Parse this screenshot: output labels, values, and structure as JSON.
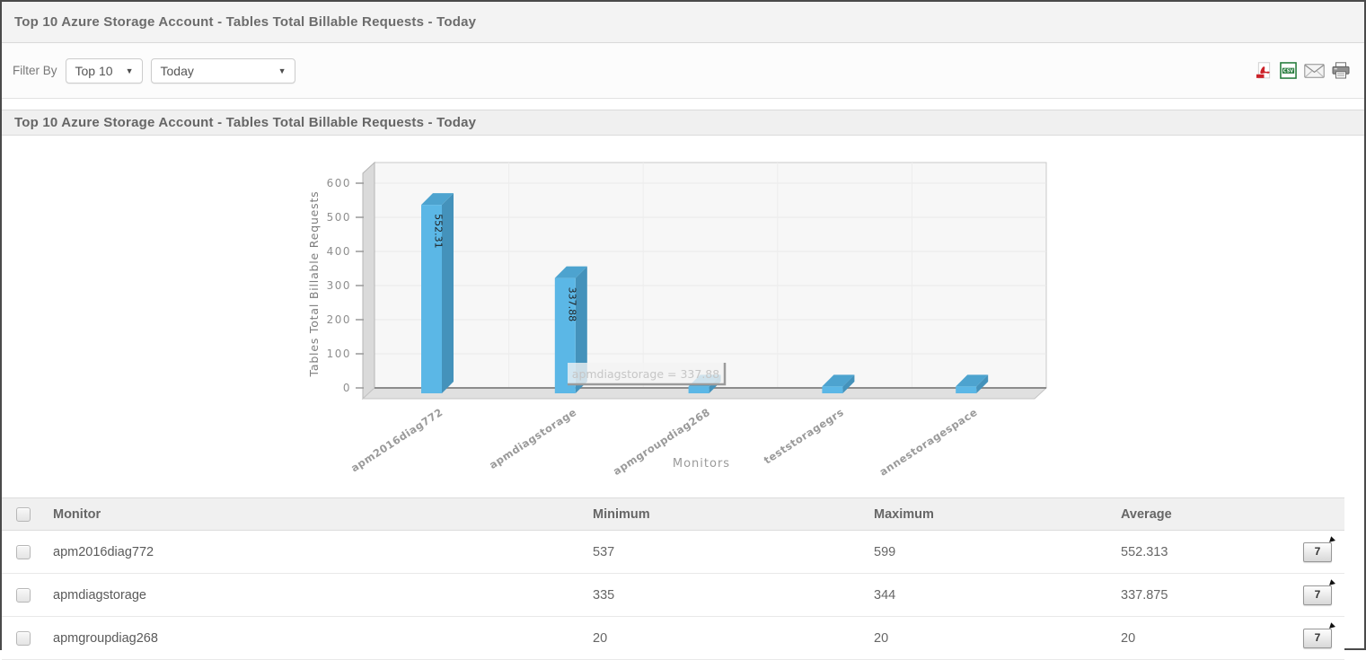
{
  "page": {
    "title": "Top 10 Azure Storage Account - Tables Total Billable Requests - Today"
  },
  "filter": {
    "label": "Filter By",
    "top_n_value": "Top 10",
    "period_value": "Today"
  },
  "export_icons": [
    "pdf-icon",
    "csv-icon",
    "mail-icon",
    "printer-icon"
  ],
  "chart_panel": {
    "title": "Top 10 Azure Storage Account - Tables Total Billable Requests - Today"
  },
  "chart_data": {
    "type": "bar",
    "title": "Top 10 Azure Storage Account - Tables Total Billable Requests - Today",
    "categories": [
      "apm2016diag772",
      "apmdiagstorage",
      "apmgroupdiag268",
      "teststoragegrs",
      "annestoragespace"
    ],
    "values": [
      552.31,
      337.88,
      20,
      20,
      20
    ],
    "bar_labels": [
      "552.31",
      "337.88",
      "",
      "",
      ""
    ],
    "xlabel": "Monitors",
    "ylabel": "Tables Total Billable Requests",
    "ylim": [
      0,
      600
    ],
    "yticks": [
      0,
      100,
      200,
      300,
      400,
      500,
      600
    ],
    "grid": true,
    "legend": false,
    "style": "3d-column",
    "bar_color_front": "#5bb7e6",
    "bar_color_side": "#4492bb",
    "bar_color_top": "#4da3cf",
    "tooltip_text": "apmdiagstorage = 337.88"
  },
  "table": {
    "columns": [
      "Monitor",
      "Minimum",
      "Maximum",
      "Average"
    ],
    "action_button_label": "7",
    "rows": [
      {
        "monitor": "apm2016diag772",
        "minimum": "537",
        "maximum": "599",
        "average": "552.313"
      },
      {
        "monitor": "apmdiagstorage",
        "minimum": "335",
        "maximum": "344",
        "average": "337.875"
      },
      {
        "monitor": "apmgroupdiag268",
        "minimum": "20",
        "maximum": "20",
        "average": "20"
      }
    ]
  }
}
